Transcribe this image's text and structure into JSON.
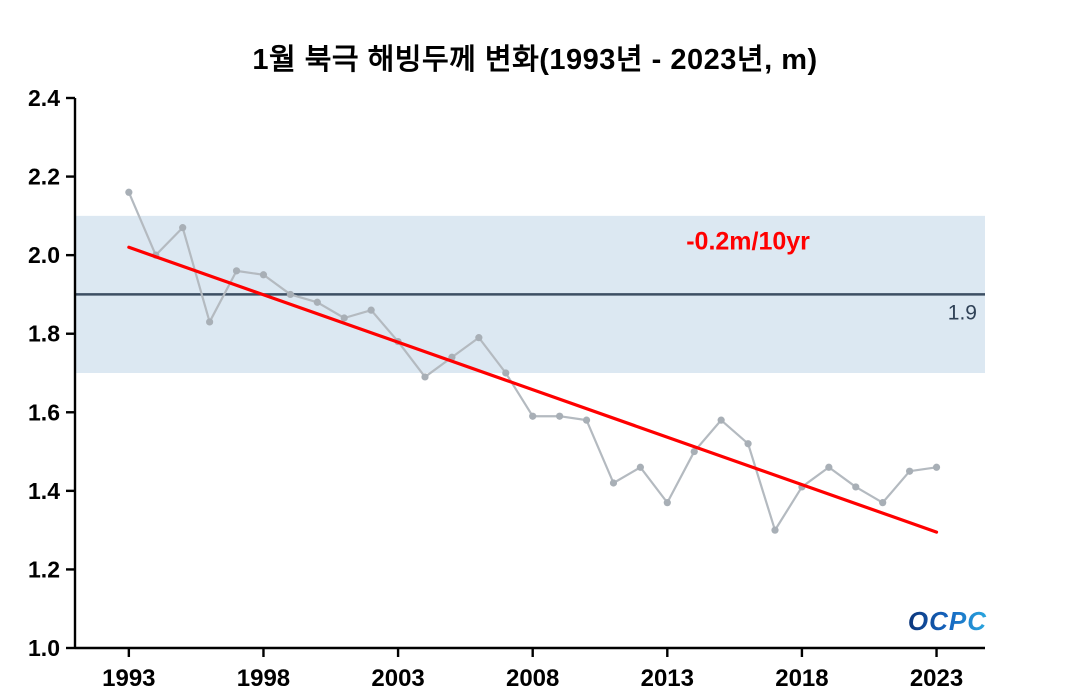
{
  "title": "1월 북극 해빙두께 변화(1993년 - 2023년, m)",
  "logo": "OCPC",
  "chart_data": {
    "type": "line",
    "title": "1월 북극 해빙두께 변화(1993년 - 2023년, m)",
    "xlabel": "",
    "ylabel": "",
    "xlim": [
      1991,
      2024.8
    ],
    "ylim": [
      1.0,
      2.4
    ],
    "xticks": [
      1993,
      1998,
      2003,
      2008,
      2013,
      2018,
      2023
    ],
    "yticks": [
      1.0,
      1.2,
      1.4,
      1.6,
      1.8,
      2.0,
      2.2,
      2.4
    ],
    "grid": false,
    "x": [
      1993,
      1994,
      1995,
      1996,
      1997,
      1998,
      1999,
      2000,
      2001,
      2002,
      2003,
      2004,
      2005,
      2006,
      2007,
      2008,
      2009,
      2010,
      2011,
      2012,
      2013,
      2014,
      2015,
      2016,
      2017,
      2018,
      2019,
      2020,
      2021,
      2022,
      2023
    ],
    "series": [
      {
        "name": "january-sea-ice-thickness",
        "color": "#b4bac0",
        "marker_color": "#a8afb6",
        "values": [
          2.16,
          2.0,
          2.07,
          1.83,
          1.96,
          1.95,
          1.9,
          1.88,
          1.84,
          1.86,
          1.78,
          1.69,
          1.74,
          1.79,
          1.7,
          1.59,
          1.59,
          1.58,
          1.42,
          1.46,
          1.37,
          1.5,
          1.58,
          1.52,
          1.3,
          1.41,
          1.46,
          1.41,
          1.37,
          1.45,
          1.46
        ]
      }
    ],
    "trend_line": {
      "label": "-0.2m/10yr",
      "color": "#ff0000",
      "x": [
        1993,
        2023
      ],
      "y": [
        2.02,
        1.295
      ],
      "label_x": 2016,
      "label_y": 2.015
    },
    "mean_line": {
      "value": 1.9,
      "label": "1.9",
      "line_color": "#3d4f63",
      "label_color": "#2f4156"
    },
    "band": {
      "from": 1.7,
      "to": 2.1,
      "color": "#dce8f2"
    },
    "axis_color": "#000000"
  }
}
